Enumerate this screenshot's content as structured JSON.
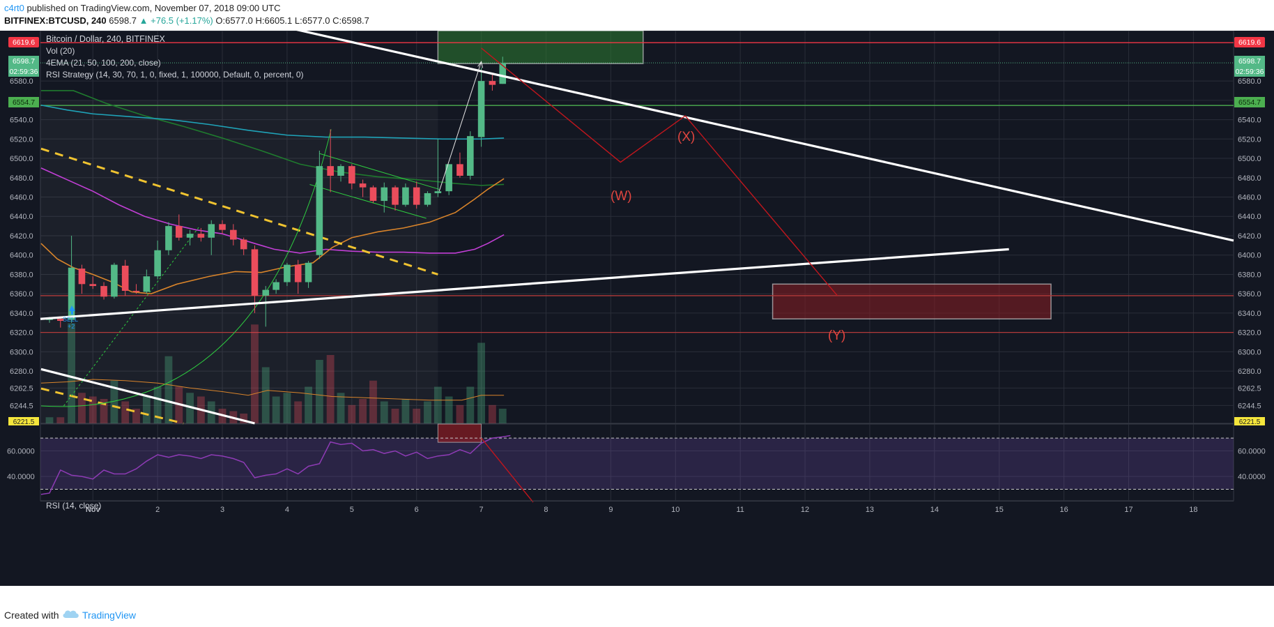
{
  "header": {
    "author": "c4rt0",
    "published_text": " published on TradingView.com, November 07, 2018 09:00 UTC",
    "symbol": "BITFINEX:BTCUSD, 240",
    "last": "6598.7",
    "change": "▲ +76.5 (+1.17%)",
    "ohlc_o": "O:6577.0",
    "ohlc_h": "H:6605.1",
    "ohlc_l": "L:6577.0",
    "ohlc_c": "C:6598.7"
  },
  "legend": {
    "title": "Bitcoin / Dollar, 240, BITFINEX",
    "vol": "Vol (20)",
    "ema": "4EMA (21, 50, 100, 200, close)",
    "rsi_strategy": "RSI Strategy (14, 30, 70, 1, 0, fixed, 1, 100000, Default, 0, percent, 0)",
    "rsi": "RSI (14, close)"
  },
  "colors": {
    "background": "#131722",
    "up": "#53b987",
    "down": "#eb4d5c",
    "ema21": "#d9842a",
    "ema50": "#c23fd6",
    "ema100": "#1fa3b8",
    "ema200": "#1f7a2e",
    "rsi_line": "#8e3bb5",
    "trendline": "#ffffff",
    "wave": "#c0161d",
    "yellow_dash": "#f0c330"
  },
  "badges": {
    "left_red": "6619.6",
    "left_last": "6598.7",
    "left_time": "02:59:36",
    "left_green": "6554.7",
    "left_bottom": "6221.5",
    "right_red": "6619.6",
    "right_last": "6598.7",
    "right_time": "02:59:36",
    "right_green": "6554.7",
    "right_bottom": "6221.5"
  },
  "wave_labels": {
    "w": "(W)",
    "x": "(X)",
    "y": "(Y)"
  },
  "order_label": "SELL",
  "order_qty": "+2",
  "footer": {
    "created": "Created with",
    "brand": "TradingView"
  },
  "chart_data": {
    "type": "candlestick",
    "symbol": "BITFINEX:BTCUSD",
    "timeframe": "240",
    "price_ticks": [
      6580.0,
      6560.0,
      6540.0,
      6520.0,
      6500.0,
      6480.0,
      6460.0,
      6440.0,
      6420.0,
      6400.0,
      6380.0,
      6360.0,
      6340.0,
      6320.0,
      6300.0,
      6280.0,
      6262.5,
      6244.5
    ],
    "price_tick_labels": [
      "6580.0",
      "6560.0",
      "6540.0",
      "6520.0",
      "6500.0",
      "6480.0",
      "6460.0",
      "6440.0",
      "6420.0",
      "6400.0",
      "6380.0",
      "6360.0",
      "6340.0",
      "6320.0",
      "6300.0",
      "6280.0",
      "6262.5",
      "6244.5"
    ],
    "ylim": [
      6226,
      6632
    ],
    "x_ticks": [
      "Nov",
      "2",
      "3",
      "4",
      "5",
      "6",
      "7",
      "8",
      "9",
      "10",
      "11",
      "12",
      "13",
      "14",
      "15",
      "16",
      "17",
      "18"
    ],
    "x_tick_days": [
      1,
      2,
      3,
      4,
      5,
      6,
      7,
      8,
      9,
      10,
      11,
      12,
      13,
      14,
      15,
      16,
      17,
      18
    ],
    "xlim": [
      0.19,
      18.62
    ],
    "rsi_ticks": [
      "60.0000",
      "40.0000"
    ],
    "rsi_tick_values": [
      60,
      40
    ],
    "rsi_lim": [
      21,
      81
    ],
    "rsi_bands": [
      70,
      30
    ],
    "candles": [
      {
        "t": 0.33,
        "o": 6333,
        "h": 6336,
        "l": 6330,
        "c": 6334
      },
      {
        "t": 0.5,
        "o": 6334,
        "h": 6336,
        "l": 6325,
        "c": 6332
      },
      {
        "t": 0.67,
        "o": 6333,
        "h": 6420,
        "l": 6330,
        "c": 6387
      },
      {
        "t": 0.83,
        "o": 6386,
        "h": 6390,
        "l": 6360,
        "c": 6370
      },
      {
        "t": 1.0,
        "o": 6370,
        "h": 6378,
        "l": 6365,
        "c": 6368
      },
      {
        "t": 1.17,
        "o": 6368,
        "h": 6372,
        "l": 6354,
        "c": 6357
      },
      {
        "t": 1.33,
        "o": 6357,
        "h": 6392,
        "l": 6355,
        "c": 6390
      },
      {
        "t": 1.5,
        "o": 6389,
        "h": 6395,
        "l": 6358,
        "c": 6363
      },
      {
        "t": 1.67,
        "o": 6363,
        "h": 6370,
        "l": 6360,
        "c": 6362
      },
      {
        "t": 1.83,
        "o": 6362,
        "h": 6385,
        "l": 6360,
        "c": 6378
      },
      {
        "t": 2.0,
        "o": 6378,
        "h": 6415,
        "l": 6375,
        "c": 6405
      },
      {
        "t": 2.17,
        "o": 6405,
        "h": 6434,
        "l": 6400,
        "c": 6430
      },
      {
        "t": 2.33,
        "o": 6430,
        "h": 6442,
        "l": 6415,
        "c": 6418
      },
      {
        "t": 2.5,
        "o": 6418,
        "h": 6426,
        "l": 6410,
        "c": 6422
      },
      {
        "t": 2.67,
        "o": 6422,
        "h": 6428,
        "l": 6414,
        "c": 6418
      },
      {
        "t": 2.83,
        "o": 6418,
        "h": 6436,
        "l": 6400,
        "c": 6432
      },
      {
        "t": 3.0,
        "o": 6432,
        "h": 6436,
        "l": 6422,
        "c": 6426
      },
      {
        "t": 3.17,
        "o": 6426,
        "h": 6432,
        "l": 6410,
        "c": 6416
      },
      {
        "t": 3.33,
        "o": 6416,
        "h": 6418,
        "l": 6400,
        "c": 6406
      },
      {
        "t": 3.5,
        "o": 6406,
        "h": 6410,
        "l": 6340,
        "c": 6358
      },
      {
        "t": 3.67,
        "o": 6358,
        "h": 6368,
        "l": 6326,
        "c": 6364
      },
      {
        "t": 3.83,
        "o": 6364,
        "h": 6375,
        "l": 6360,
        "c": 6372
      },
      {
        "t": 4.0,
        "o": 6372,
        "h": 6392,
        "l": 6368,
        "c": 6390
      },
      {
        "t": 4.17,
        "o": 6390,
        "h": 6395,
        "l": 6360,
        "c": 6372
      },
      {
        "t": 4.33,
        "o": 6372,
        "h": 6394,
        "l": 6366,
        "c": 6392
      },
      {
        "t": 4.5,
        "o": 6400,
        "h": 6508,
        "l": 6396,
        "c": 6492
      },
      {
        "t": 4.67,
        "o": 6492,
        "h": 6530,
        "l": 6465,
        "c": 6482
      },
      {
        "t": 4.83,
        "o": 6482,
        "h": 6494,
        "l": 6476,
        "c": 6492
      },
      {
        "t": 5.0,
        "o": 6492,
        "h": 6494,
        "l": 6468,
        "c": 6474
      },
      {
        "t": 5.17,
        "o": 6474,
        "h": 6478,
        "l": 6460,
        "c": 6470
      },
      {
        "t": 5.33,
        "o": 6470,
        "h": 6472,
        "l": 6454,
        "c": 6456
      },
      {
        "t": 5.5,
        "o": 6456,
        "h": 6475,
        "l": 6444,
        "c": 6470
      },
      {
        "t": 5.67,
        "o": 6470,
        "h": 6472,
        "l": 6446,
        "c": 6452
      },
      {
        "t": 5.83,
        "o": 6452,
        "h": 6474,
        "l": 6450,
        "c": 6470
      },
      {
        "t": 6.0,
        "o": 6470,
        "h": 6476,
        "l": 6448,
        "c": 6452
      },
      {
        "t": 6.17,
        "o": 6452,
        "h": 6466,
        "l": 6450,
        "c": 6464
      },
      {
        "t": 6.33,
        "o": 6464,
        "h": 6520,
        "l": 6460,
        "c": 6466
      },
      {
        "t": 6.5,
        "o": 6466,
        "h": 6494,
        "l": 6462,
        "c": 6494
      },
      {
        "t": 6.67,
        "o": 6494,
        "h": 6506,
        "l": 6480,
        "c": 6482
      },
      {
        "t": 6.83,
        "o": 6482,
        "h": 6528,
        "l": 6478,
        "c": 6523
      },
      {
        "t": 7.0,
        "o": 6522,
        "h": 6594,
        "l": 6512,
        "c": 6580
      },
      {
        "t": 7.17,
        "o": 6580,
        "h": 6588,
        "l": 6570,
        "c": 6576
      },
      {
        "t": 7.33,
        "o": 6577,
        "h": 6605.1,
        "l": 6577,
        "c": 6598.7
      }
    ],
    "volume": [
      0.05,
      0.05,
      0.82,
      0.25,
      0.22,
      0.2,
      0.35,
      0.18,
      0.12,
      0.22,
      0.3,
      0.55,
      0.3,
      0.25,
      0.22,
      0.18,
      0.12,
      0.1,
      0.08,
      0.81,
      0.46,
      0.22,
      0.25,
      0.18,
      0.3,
      0.52,
      0.56,
      0.25,
      0.15,
      0.2,
      0.35,
      0.18,
      0.12,
      0.2,
      0.12,
      0.18,
      0.3,
      0.22,
      0.15,
      0.3,
      0.66,
      0.15,
      0.12
    ],
    "rsi": [
      {
        "t": 0.2,
        "v": 26
      },
      {
        "t": 0.33,
        "v": 27
      },
      {
        "t": 0.5,
        "v": 45
      },
      {
        "t": 0.67,
        "v": 41
      },
      {
        "t": 0.83,
        "v": 40
      },
      {
        "t": 1.0,
        "v": 38
      },
      {
        "t": 1.17,
        "v": 45
      },
      {
        "t": 1.33,
        "v": 42
      },
      {
        "t": 1.5,
        "v": 42
      },
      {
        "t": 1.67,
        "v": 46
      },
      {
        "t": 1.83,
        "v": 52
      },
      {
        "t": 2.0,
        "v": 57
      },
      {
        "t": 2.17,
        "v": 55
      },
      {
        "t": 2.33,
        "v": 57
      },
      {
        "t": 2.5,
        "v": 56
      },
      {
        "t": 2.67,
        "v": 54
      },
      {
        "t": 2.83,
        "v": 57
      },
      {
        "t": 3.0,
        "v": 56
      },
      {
        "t": 3.17,
        "v": 54
      },
      {
        "t": 3.33,
        "v": 51
      },
      {
        "t": 3.5,
        "v": 39
      },
      {
        "t": 3.67,
        "v": 41
      },
      {
        "t": 3.83,
        "v": 42
      },
      {
        "t": 4.0,
        "v": 46
      },
      {
        "t": 4.17,
        "v": 42
      },
      {
        "t": 4.33,
        "v": 48
      },
      {
        "t": 4.5,
        "v": 50
      },
      {
        "t": 4.67,
        "v": 67
      },
      {
        "t": 4.83,
        "v": 65
      },
      {
        "t": 5.0,
        "v": 66
      },
      {
        "t": 5.17,
        "v": 60
      },
      {
        "t": 5.33,
        "v": 61
      },
      {
        "t": 5.5,
        "v": 58
      },
      {
        "t": 5.67,
        "v": 60
      },
      {
        "t": 5.83,
        "v": 56
      },
      {
        "t": 6.0,
        "v": 59
      },
      {
        "t": 6.17,
        "v": 54
      },
      {
        "t": 6.33,
        "v": 56
      },
      {
        "t": 6.5,
        "v": 57
      },
      {
        "t": 6.67,
        "v": 61
      },
      {
        "t": 6.83,
        "v": 58
      },
      {
        "t": 7.0,
        "v": 66
      },
      {
        "t": 7.17,
        "v": 70
      },
      {
        "t": 7.33,
        "v": 71
      },
      {
        "t": 7.45,
        "v": 72
      }
    ],
    "ema21": [
      {
        "t": 0.2,
        "v": 6412
      },
      {
        "t": 0.45,
        "v": 6396
      },
      {
        "t": 0.7,
        "v": 6387
      },
      {
        "t": 1.0,
        "v": 6380
      },
      {
        "t": 1.3,
        "v": 6372
      },
      {
        "t": 1.6,
        "v": 6362
      },
      {
        "t": 1.9,
        "v": 6360
      },
      {
        "t": 2.3,
        "v": 6370
      },
      {
        "t": 2.8,
        "v": 6378
      },
      {
        "t": 3.2,
        "v": 6383
      },
      {
        "t": 3.6,
        "v": 6382
      },
      {
        "t": 4.0,
        "v": 6388
      },
      {
        "t": 4.4,
        "v": 6392
      },
      {
        "t": 4.7,
        "v": 6408
      },
      {
        "t": 5.0,
        "v": 6418
      },
      {
        "t": 5.4,
        "v": 6424
      },
      {
        "t": 5.8,
        "v": 6428
      },
      {
        "t": 6.2,
        "v": 6434
      },
      {
        "t": 6.6,
        "v": 6444
      },
      {
        "t": 6.9,
        "v": 6458
      },
      {
        "t": 7.1,
        "v": 6468
      },
      {
        "t": 7.35,
        "v": 6479
      }
    ],
    "ema50": [
      {
        "t": 0.2,
        "v": 6490
      },
      {
        "t": 0.6,
        "v": 6478
      },
      {
        "t": 1.0,
        "v": 6466
      },
      {
        "t": 1.4,
        "v": 6452
      },
      {
        "t": 1.8,
        "v": 6440
      },
      {
        "t": 2.2,
        "v": 6432
      },
      {
        "t": 2.6,
        "v": 6426
      },
      {
        "t": 3.0,
        "v": 6422
      },
      {
        "t": 3.4,
        "v": 6414
      },
      {
        "t": 3.8,
        "v": 6406
      },
      {
        "t": 4.2,
        "v": 6402
      },
      {
        "t": 4.6,
        "v": 6406
      },
      {
        "t": 5.0,
        "v": 6404
      },
      {
        "t": 5.4,
        "v": 6403
      },
      {
        "t": 5.8,
        "v": 6403
      },
      {
        "t": 6.2,
        "v": 6402
      },
      {
        "t": 6.6,
        "v": 6402
      },
      {
        "t": 6.9,
        "v": 6406
      },
      {
        "t": 7.1,
        "v": 6412
      },
      {
        "t": 7.35,
        "v": 6421
      }
    ],
    "ema100": [
      {
        "t": 0.2,
        "v": 6555
      },
      {
        "t": 0.6,
        "v": 6550
      },
      {
        "t": 1.0,
        "v": 6546
      },
      {
        "t": 1.6,
        "v": 6543
      },
      {
        "t": 2.2,
        "v": 6540
      },
      {
        "t": 2.8,
        "v": 6535
      },
      {
        "t": 3.4,
        "v": 6529
      },
      {
        "t": 4.0,
        "v": 6524
      },
      {
        "t": 4.6,
        "v": 6522
      },
      {
        "t": 5.2,
        "v": 6522
      },
      {
        "t": 5.8,
        "v": 6521
      },
      {
        "t": 6.4,
        "v": 6520
      },
      {
        "t": 7.0,
        "v": 6520
      },
      {
        "t": 7.35,
        "v": 6521
      }
    ],
    "ema200": [
      {
        "t": 0.2,
        "v": 6570
      },
      {
        "t": 0.7,
        "v": 6570
      },
      {
        "t": 1.2,
        "v": 6557
      },
      {
        "t": 1.8,
        "v": 6544
      },
      {
        "t": 2.4,
        "v": 6533
      },
      {
        "t": 3.0,
        "v": 6521
      },
      {
        "t": 3.6,
        "v": 6508
      },
      {
        "t": 4.2,
        "v": 6494
      },
      {
        "t": 4.8,
        "v": 6486
      },
      {
        "t": 5.4,
        "v": 6481
      },
      {
        "t": 6.0,
        "v": 6478
      },
      {
        "t": 6.6,
        "v": 6474
      },
      {
        "t": 7.0,
        "v": 6472
      },
      {
        "t": 7.35,
        "v": 6473
      }
    ],
    "vol_ma": [
      {
        "t": 0.2,
        "v": 0.33
      },
      {
        "t": 0.6,
        "v": 0.34
      },
      {
        "t": 1.0,
        "v": 0.36
      },
      {
        "t": 1.5,
        "v": 0.35
      },
      {
        "t": 2.0,
        "v": 0.33
      },
      {
        "t": 2.5,
        "v": 0.29
      },
      {
        "t": 3.0,
        "v": 0.26
      },
      {
        "t": 3.4,
        "v": 0.23
      },
      {
        "t": 3.7,
        "v": 0.27
      },
      {
        "t": 4.2,
        "v": 0.25
      },
      {
        "t": 4.7,
        "v": 0.22
      },
      {
        "t": 5.2,
        "v": 0.21
      },
      {
        "t": 5.7,
        "v": 0.2
      },
      {
        "t": 6.2,
        "v": 0.19
      },
      {
        "t": 6.7,
        "v": 0.19
      },
      {
        "t": 7.0,
        "v": 0.23
      },
      {
        "t": 7.35,
        "v": 0.23
      }
    ],
    "horizontal_levels": [
      {
        "price": 6619.6,
        "color": "red"
      },
      {
        "price": 6554.7,
        "color": "green"
      },
      {
        "price": 6358,
        "color": "darkred"
      },
      {
        "price": 6320,
        "color": "darkred"
      }
    ],
    "trendlines": [
      {
        "from": [
          4.15,
          6633
        ],
        "to": [
          18.62,
          6415
        ],
        "color": "white"
      },
      {
        "from": [
          0.19,
          6334
        ],
        "to": [
          15.15,
          6406
        ],
        "color": "white"
      },
      {
        "from": [
          0.2,
          6282
        ],
        "to": [
          3.5,
          6226
        ],
        "color": "white"
      }
    ],
    "wave_path": [
      [
        7.0,
        6614
      ],
      [
        9.15,
        6496
      ],
      [
        10.15,
        6544
      ],
      [
        12.5,
        6358
      ]
    ],
    "zones": [
      {
        "x0": 6.33,
        "x1": 9.5,
        "y0": 6598,
        "y1": 6632,
        "kind": "target",
        "color": "green"
      },
      {
        "x0": 11.5,
        "x1": 15.8,
        "y0": 6334,
        "y1": 6370,
        "kind": "target",
        "color": "red"
      }
    ]
  }
}
